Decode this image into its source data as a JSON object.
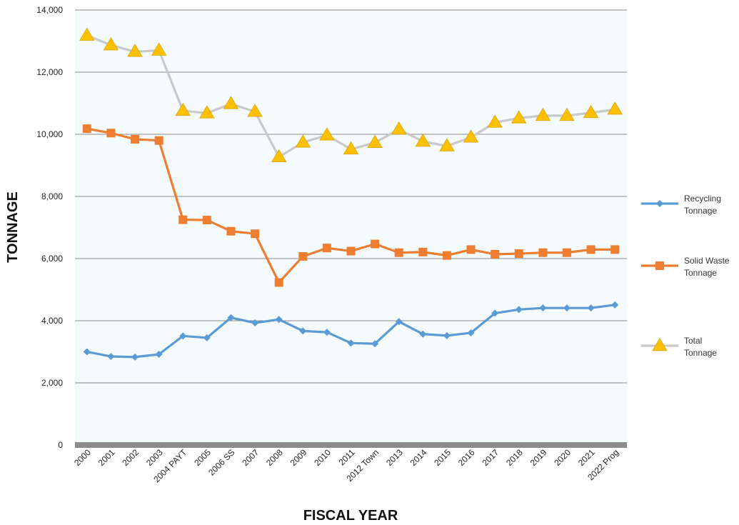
{
  "chart_data": {
    "type": "line",
    "xlabel": "FISCAL YEAR",
    "ylabel": "TONNAGE",
    "ylim": [
      0,
      14000
    ],
    "yticks": [
      0,
      2000,
      4000,
      6000,
      8000,
      10000,
      12000,
      14000
    ],
    "ytick_labels": [
      "0",
      "2,000",
      "4,000",
      "6,000",
      "8,000",
      "10,000",
      "12,000",
      "14,000"
    ],
    "grid": "horizontal",
    "legend_position": "right",
    "categories": [
      "2000",
      "2001",
      "2002",
      "2003",
      "2004 PAYT",
      "2005",
      "2006 SS",
      "2007",
      "2008",
      "2009",
      "2010",
      "2011",
      "2012 Town",
      "2013",
      "2014",
      "2015",
      "2016",
      "2017",
      "2018",
      "2019",
      "2020",
      "2021",
      "2022 Prog"
    ],
    "series": [
      {
        "name": "Recycling Tonnage",
        "color": "#5b9bd5",
        "marker": "diamond",
        "values": [
          3000,
          2850,
          2830,
          2920,
          3510,
          3450,
          4100,
          3930,
          4040,
          3670,
          3630,
          3280,
          3260,
          3970,
          3570,
          3520,
          3610,
          4240,
          4360,
          4410,
          4410,
          4410,
          4510
        ]
      },
      {
        "name": "Solid Waste Tonnage",
        "color": "#ed7d31",
        "marker": "square",
        "values": [
          10180,
          10040,
          9840,
          9800,
          7250,
          7240,
          6880,
          6800,
          5230,
          6070,
          6340,
          6240,
          6470,
          6190,
          6210,
          6100,
          6290,
          6140,
          6160,
          6190,
          6190,
          6290,
          6290
        ]
      },
      {
        "name": "Total Tonnage",
        "color": "#c9c9c9",
        "marker": "triangle",
        "marker_color": "#ffc000",
        "values": [
          13180,
          12870,
          12660,
          12700,
          10760,
          10680,
          10980,
          10730,
          9270,
          9740,
          9970,
          9520,
          9730,
          10160,
          9770,
          9620,
          9900,
          10380,
          10520,
          10600,
          10600,
          10690,
          10800
        ]
      }
    ]
  }
}
